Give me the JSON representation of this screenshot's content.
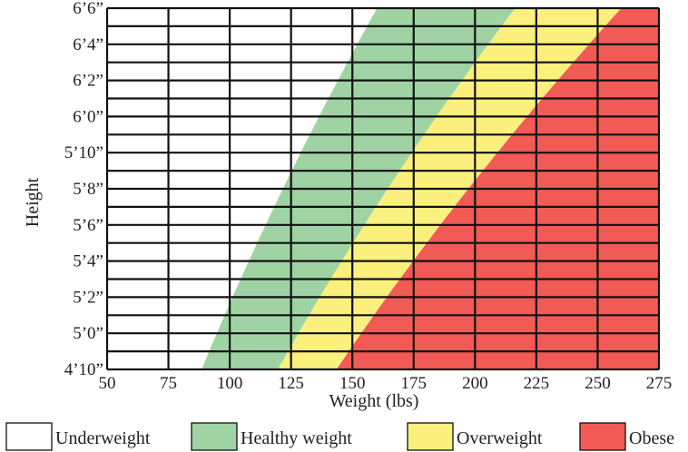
{
  "chart_data": {
    "type": "area",
    "title": "",
    "xlabel": "Weight (lbs)",
    "ylabel": "Height",
    "xlim": [
      50,
      275
    ],
    "x_ticks": [
      50,
      75,
      100,
      125,
      150,
      175,
      200,
      225,
      250,
      275
    ],
    "y_tick_labels": [
      "6’6”",
      "6’4”",
      "6’2”",
      "6’0”",
      "5’10”",
      "5’8”",
      "5’6”",
      "5’4”",
      "5’2”",
      "5’0”",
      "4’10”"
    ],
    "ylim_inches": [
      58,
      78
    ],
    "grid": true,
    "legend_position": "bottom",
    "bmi_thresholds": [
      18.5,
      25,
      30
    ],
    "series": [
      {
        "name": "Underweight",
        "color": "#ffffff"
      },
      {
        "name": "Healthy weight",
        "color": "#9fd3a3"
      },
      {
        "name": "Overweight",
        "color": "#fbf07e"
      },
      {
        "name": "Obese",
        "color": "#f25a55"
      }
    ]
  }
}
